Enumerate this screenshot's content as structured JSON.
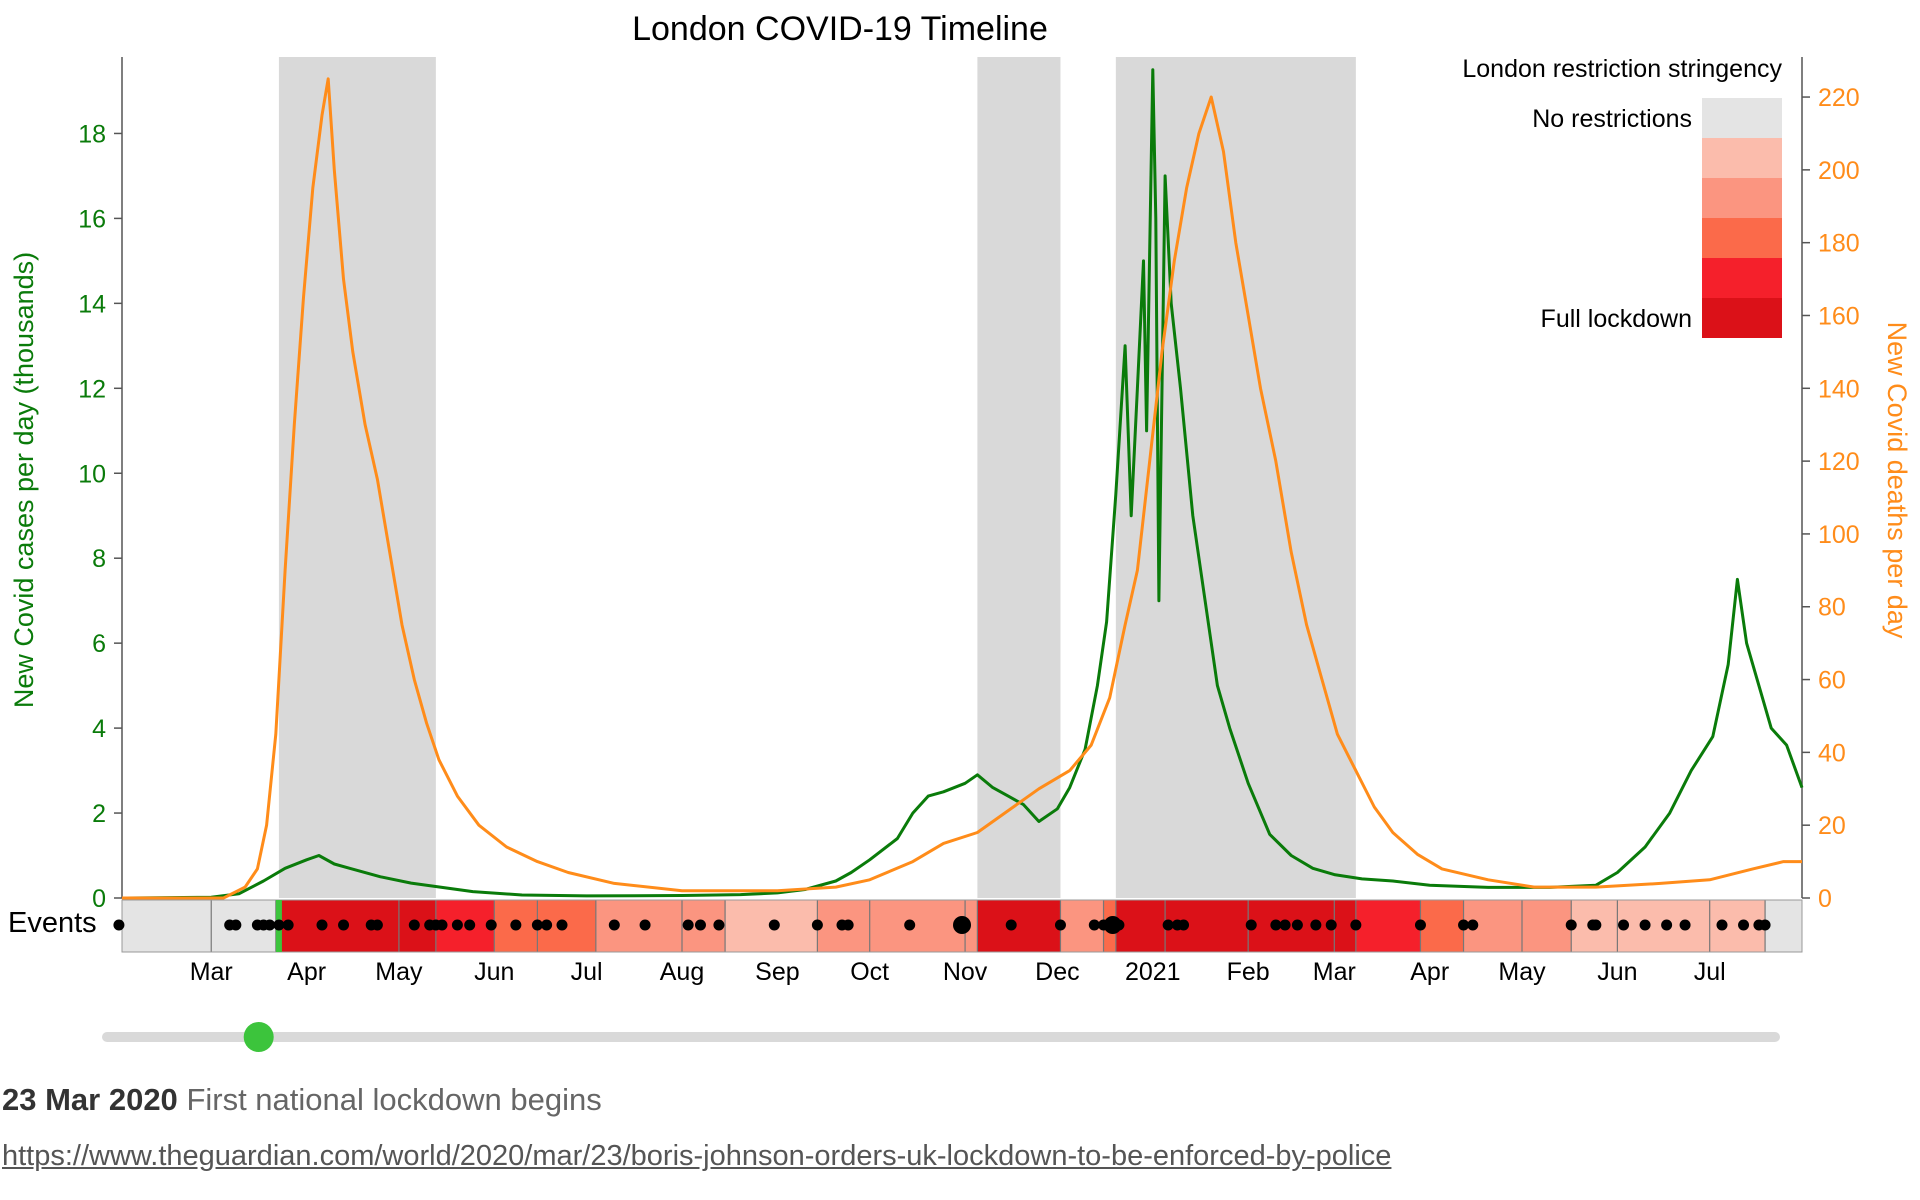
{
  "chart_data": {
    "type": "line",
    "title": "London COVID-19 Timeline",
    "ylabel_left": "New Covid cases per day (thousands)",
    "ylabel_right": "New Covid deaths per day",
    "ylim_left": [
      0,
      19.8
    ],
    "ylim_right": [
      0,
      231
    ],
    "yticks_left": [
      0,
      2,
      4,
      6,
      8,
      10,
      12,
      14,
      16,
      18
    ],
    "yticks_right": [
      0,
      20,
      40,
      60,
      80,
      100,
      120,
      140,
      160,
      180,
      200,
      220
    ],
    "xlim": [
      "2020-02-01",
      "2021-07-31"
    ],
    "month_ticks": [
      {
        "date": "2020-03-01",
        "label": "Mar"
      },
      {
        "date": "2020-04-01",
        "label": "Apr"
      },
      {
        "date": "2020-05-01",
        "label": "May"
      },
      {
        "date": "2020-06-01",
        "label": "Jun"
      },
      {
        "date": "2020-07-01",
        "label": "Jul"
      },
      {
        "date": "2020-08-01",
        "label": "Aug"
      },
      {
        "date": "2020-09-01",
        "label": "Sep"
      },
      {
        "date": "2020-10-01",
        "label": "Oct"
      },
      {
        "date": "2020-11-01",
        "label": "Nov"
      },
      {
        "date": "2020-12-01",
        "label": "Dec"
      },
      {
        "date": "2021-01-01",
        "label": "2021"
      },
      {
        "date": "2021-02-01",
        "label": "Feb"
      },
      {
        "date": "2021-03-01",
        "label": "Mar"
      },
      {
        "date": "2021-04-01",
        "label": "Apr"
      },
      {
        "date": "2021-05-01",
        "label": "May"
      },
      {
        "date": "2021-06-01",
        "label": "Jun"
      },
      {
        "date": "2021-07-01",
        "label": "Jul"
      }
    ],
    "lockdown_periods": [
      {
        "start": "2020-03-23",
        "end": "2020-05-13"
      },
      {
        "start": "2020-11-05",
        "end": "2020-12-02"
      },
      {
        "start": "2020-12-20",
        "end": "2021-03-08"
      }
    ],
    "series": [
      {
        "name": "New Covid cases per day (thousands)",
        "axis": "left",
        "color": "#0a7b0a",
        "points": [
          [
            "2020-02-01",
            0
          ],
          [
            "2020-03-01",
            0.02
          ],
          [
            "2020-03-10",
            0.1
          ],
          [
            "2020-03-18",
            0.4
          ],
          [
            "2020-03-25",
            0.7
          ],
          [
            "2020-04-01",
            0.9
          ],
          [
            "2020-04-05",
            1.0
          ],
          [
            "2020-04-10",
            0.8
          ],
          [
            "2020-04-15",
            0.7
          ],
          [
            "2020-04-25",
            0.5
          ],
          [
            "2020-05-05",
            0.35
          ],
          [
            "2020-05-15",
            0.25
          ],
          [
            "2020-05-25",
            0.15
          ],
          [
            "2020-06-10",
            0.07
          ],
          [
            "2020-07-01",
            0.05
          ],
          [
            "2020-08-01",
            0.06
          ],
          [
            "2020-08-20",
            0.08
          ],
          [
            "2020-09-01",
            0.12
          ],
          [
            "2020-09-10",
            0.2
          ],
          [
            "2020-09-20",
            0.4
          ],
          [
            "2020-09-25",
            0.6
          ],
          [
            "2020-10-01",
            0.9
          ],
          [
            "2020-10-10",
            1.4
          ],
          [
            "2020-10-15",
            2.0
          ],
          [
            "2020-10-20",
            2.4
          ],
          [
            "2020-10-25",
            2.5
          ],
          [
            "2020-11-01",
            2.7
          ],
          [
            "2020-11-05",
            2.9
          ],
          [
            "2020-11-10",
            2.6
          ],
          [
            "2020-11-15",
            2.4
          ],
          [
            "2020-11-20",
            2.2
          ],
          [
            "2020-11-25",
            1.8
          ],
          [
            "2020-12-01",
            2.1
          ],
          [
            "2020-12-05",
            2.6
          ],
          [
            "2020-12-10",
            3.5
          ],
          [
            "2020-12-14",
            5.0
          ],
          [
            "2020-12-17",
            6.5
          ],
          [
            "2020-12-20",
            9.5
          ],
          [
            "2020-12-23",
            13.0
          ],
          [
            "2020-12-25",
            9.0
          ],
          [
            "2020-12-27",
            12.0
          ],
          [
            "2020-12-29",
            15.0
          ],
          [
            "2020-12-30",
            11.0
          ],
          [
            "2021-01-01",
            19.5
          ],
          [
            "2021-01-02",
            16.0
          ],
          [
            "2021-01-03",
            7.0
          ],
          [
            "2021-01-05",
            17.0
          ],
          [
            "2021-01-07",
            14.0
          ],
          [
            "2021-01-10",
            12.0
          ],
          [
            "2021-01-14",
            9.0
          ],
          [
            "2021-01-18",
            7.0
          ],
          [
            "2021-01-22",
            5.0
          ],
          [
            "2021-01-26",
            4.0
          ],
          [
            "2021-02-01",
            2.7
          ],
          [
            "2021-02-08",
            1.5
          ],
          [
            "2021-02-15",
            1.0
          ],
          [
            "2021-02-22",
            0.7
          ],
          [
            "2021-03-01",
            0.55
          ],
          [
            "2021-03-10",
            0.45
          ],
          [
            "2021-03-20",
            0.4
          ],
          [
            "2021-04-01",
            0.3
          ],
          [
            "2021-04-20",
            0.25
          ],
          [
            "2021-05-10",
            0.25
          ],
          [
            "2021-05-25",
            0.3
          ],
          [
            "2021-06-01",
            0.6
          ],
          [
            "2021-06-10",
            1.2
          ],
          [
            "2021-06-18",
            2.0
          ],
          [
            "2021-06-25",
            3.0
          ],
          [
            "2021-07-02",
            3.8
          ],
          [
            "2021-07-07",
            5.5
          ],
          [
            "2021-07-10",
            7.5
          ],
          [
            "2021-07-13",
            6.0
          ],
          [
            "2021-07-17",
            5.0
          ],
          [
            "2021-07-21",
            4.0
          ],
          [
            "2021-07-26",
            3.6
          ],
          [
            "2021-07-31",
            2.6
          ]
        ]
      },
      {
        "name": "New Covid deaths per day",
        "axis": "right",
        "color": "#ff8c1a",
        "points": [
          [
            "2020-02-01",
            0
          ],
          [
            "2020-03-05",
            0
          ],
          [
            "2020-03-12",
            3
          ],
          [
            "2020-03-16",
            8
          ],
          [
            "2020-03-19",
            20
          ],
          [
            "2020-03-22",
            45
          ],
          [
            "2020-03-25",
            90
          ],
          [
            "2020-03-28",
            130
          ],
          [
            "2020-03-31",
            165
          ],
          [
            "2020-04-03",
            195
          ],
          [
            "2020-04-06",
            215
          ],
          [
            "2020-04-08",
            225
          ],
          [
            "2020-04-10",
            200
          ],
          [
            "2020-04-13",
            170
          ],
          [
            "2020-04-16",
            150
          ],
          [
            "2020-04-20",
            130
          ],
          [
            "2020-04-24",
            115
          ],
          [
            "2020-04-28",
            95
          ],
          [
            "2020-05-02",
            75
          ],
          [
            "2020-05-06",
            60
          ],
          [
            "2020-05-10",
            48
          ],
          [
            "2020-05-14",
            38
          ],
          [
            "2020-05-20",
            28
          ],
          [
            "2020-05-27",
            20
          ],
          [
            "2020-06-05",
            14
          ],
          [
            "2020-06-15",
            10
          ],
          [
            "2020-06-25",
            7
          ],
          [
            "2020-07-10",
            4
          ],
          [
            "2020-08-01",
            2
          ],
          [
            "2020-09-01",
            2
          ],
          [
            "2020-09-20",
            3
          ],
          [
            "2020-10-01",
            5
          ],
          [
            "2020-10-15",
            10
          ],
          [
            "2020-10-25",
            15
          ],
          [
            "2020-11-05",
            18
          ],
          [
            "2020-11-15",
            24
          ],
          [
            "2020-11-25",
            30
          ],
          [
            "2020-12-05",
            35
          ],
          [
            "2020-12-12",
            42
          ],
          [
            "2020-12-18",
            55
          ],
          [
            "2020-12-23",
            75
          ],
          [
            "2020-12-27",
            90
          ],
          [
            "2020-12-31",
            120
          ],
          [
            "2021-01-04",
            150
          ],
          [
            "2021-01-08",
            175
          ],
          [
            "2021-01-12",
            195
          ],
          [
            "2021-01-16",
            210
          ],
          [
            "2021-01-20",
            220
          ],
          [
            "2021-01-24",
            205
          ],
          [
            "2021-01-28",
            180
          ],
          [
            "2021-02-01",
            160
          ],
          [
            "2021-02-05",
            140
          ],
          [
            "2021-02-10",
            120
          ],
          [
            "2021-02-15",
            95
          ],
          [
            "2021-02-20",
            75
          ],
          [
            "2021-02-25",
            60
          ],
          [
            "2021-03-02",
            45
          ],
          [
            "2021-03-08",
            35
          ],
          [
            "2021-03-14",
            25
          ],
          [
            "2021-03-20",
            18
          ],
          [
            "2021-03-28",
            12
          ],
          [
            "2021-04-05",
            8
          ],
          [
            "2021-04-20",
            5
          ],
          [
            "2021-05-05",
            3
          ],
          [
            "2021-05-25",
            3
          ],
          [
            "2021-06-15",
            4
          ],
          [
            "2021-07-01",
            5
          ],
          [
            "2021-07-15",
            8
          ],
          [
            "2021-07-25",
            10
          ],
          [
            "2021-07-31",
            10
          ]
        ]
      }
    ],
    "legend": {
      "title": "London restriction stringency",
      "top_label": "No restrictions",
      "bottom_label": "Full lockdown",
      "colors": [
        "#e4e4e4",
        "#fbbcac",
        "#fb9580",
        "#fb6a4a",
        "#f5202b",
        "#db1118"
      ],
      "placement": "top-right"
    },
    "events_row": {
      "label": "Events",
      "stringency_segments": [
        {
          "start": "2020-02-01",
          "end": "2020-03-01",
          "level": 0
        },
        {
          "start": "2020-03-01",
          "end": "2020-03-22",
          "level": 0
        },
        {
          "start": "2020-03-22",
          "end": "2020-03-23",
          "level": 1
        },
        {
          "start": "2020-03-23",
          "end": "2020-05-01",
          "level": 5
        },
        {
          "start": "2020-05-01",
          "end": "2020-05-13",
          "level": 5
        },
        {
          "start": "2020-05-13",
          "end": "2020-06-01",
          "level": 4
        },
        {
          "start": "2020-06-01",
          "end": "2020-06-15",
          "level": 3
        },
        {
          "start": "2020-06-15",
          "end": "2020-07-04",
          "level": 3
        },
        {
          "start": "2020-07-04",
          "end": "2020-08-01",
          "level": 2
        },
        {
          "start": "2020-08-01",
          "end": "2020-08-15",
          "level": 2
        },
        {
          "start": "2020-08-15",
          "end": "2020-09-14",
          "level": 1
        },
        {
          "start": "2020-09-14",
          "end": "2020-10-01",
          "level": 2
        },
        {
          "start": "2020-10-01",
          "end": "2020-11-01",
          "level": 2
        },
        {
          "start": "2020-11-01",
          "end": "2020-11-05",
          "level": 2
        },
        {
          "start": "2020-11-05",
          "end": "2020-12-02",
          "level": 5
        },
        {
          "start": "2020-12-02",
          "end": "2020-12-16",
          "level": 2
        },
        {
          "start": "2020-12-16",
          "end": "2020-12-20",
          "level": 3
        },
        {
          "start": "2020-12-20",
          "end": "2021-01-05",
          "level": 5
        },
        {
          "start": "2021-01-05",
          "end": "2021-02-01",
          "level": 5
        },
        {
          "start": "2021-02-01",
          "end": "2021-03-01",
          "level": 5
        },
        {
          "start": "2021-03-01",
          "end": "2021-03-08",
          "level": 5
        },
        {
          "start": "2021-03-08",
          "end": "2021-03-29",
          "level": 4
        },
        {
          "start": "2021-03-29",
          "end": "2021-04-12",
          "level": 3
        },
        {
          "start": "2021-04-12",
          "end": "2021-05-01",
          "level": 2
        },
        {
          "start": "2021-05-01",
          "end": "2021-05-17",
          "level": 2
        },
        {
          "start": "2021-05-17",
          "end": "2021-06-01",
          "level": 1
        },
        {
          "start": "2021-06-01",
          "end": "2021-07-01",
          "level": 1
        },
        {
          "start": "2021-07-01",
          "end": "2021-07-19",
          "level": 1
        },
        {
          "start": "2021-07-19",
          "end": "2021-07-31",
          "level": 0
        }
      ],
      "event_dates": [
        "2020-01-31",
        "2020-03-07",
        "2020-03-09",
        "2020-03-16",
        "2020-03-18",
        "2020-03-20",
        "2020-03-23",
        "2020-03-26",
        "2020-04-06",
        "2020-04-13",
        "2020-04-22",
        "2020-04-24",
        "2020-05-06",
        "2020-05-11",
        "2020-05-13",
        "2020-05-15",
        "2020-05-20",
        "2020-05-24",
        "2020-05-31",
        "2020-06-08",
        "2020-06-15",
        "2020-06-18",
        "2020-06-23",
        "2020-07-10",
        "2020-07-20",
        "2020-08-03",
        "2020-08-07",
        "2020-08-13",
        "2020-08-31",
        "2020-09-14",
        "2020-09-22",
        "2020-09-24",
        "2020-10-14",
        "2020-10-31",
        "2020-11-16",
        "2020-12-02",
        "2020-12-13",
        "2020-12-16",
        "2020-12-19",
        "2020-12-21",
        "2021-01-06",
        "2021-01-09",
        "2021-01-11",
        "2021-02-02",
        "2021-02-10",
        "2021-02-13",
        "2021-02-17",
        "2021-02-23",
        "2021-02-28",
        "2021-03-08",
        "2021-03-29",
        "2021-04-12",
        "2021-04-15",
        "2021-05-17",
        "2021-05-24",
        "2021-05-25",
        "2021-06-03",
        "2021-06-10",
        "2021-06-17",
        "2021-06-23",
        "2021-07-05",
        "2021-07-12",
        "2021-07-17",
        "2021-07-19"
      ],
      "big_event_dates": [
        "2020-10-31",
        "2020-12-19"
      ],
      "selected_event_date": "2020-03-23"
    }
  },
  "slider": {
    "range": [
      "2020-02-01",
      "2021-07-31"
    ],
    "value": "2020-03-23"
  },
  "selected_event": {
    "date_label": "23 Mar 2020",
    "description": "First national lockdown begins",
    "url": "https://www.theguardian.com/world/2020/mar/23/boris-johnson-orders-uk-lockdown-to-be-enforced-by-police"
  }
}
